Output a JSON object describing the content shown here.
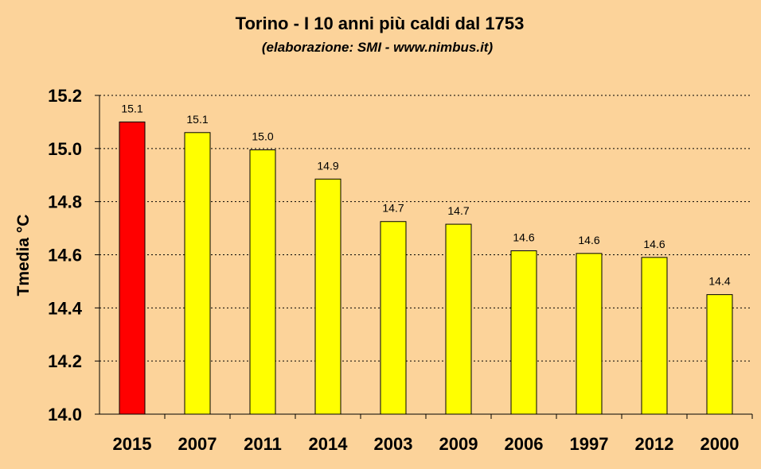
{
  "chart_data": {
    "type": "bar",
    "title": "Torino - I 10 anni più caldi dal 1753",
    "subtitle": "(elaborazione: SMI - www.nimbus.it)",
    "xlabel": "",
    "ylabel": "Tmedia °C",
    "ylim": [
      14.0,
      15.2
    ],
    "yticks": [
      "14.0",
      "14.2",
      "14.4",
      "14.6",
      "14.8",
      "15.0",
      "15.2"
    ],
    "ytick_values": [
      14.0,
      14.2,
      14.4,
      14.6,
      14.8,
      15.0,
      15.2
    ],
    "grid": true,
    "categories": [
      "2015",
      "2007",
      "2011",
      "2014",
      "2003",
      "2009",
      "2006",
      "1997",
      "2012",
      "2000"
    ],
    "values": [
      15.1,
      15.06,
      14.995,
      14.885,
      14.725,
      14.715,
      14.615,
      14.605,
      14.59,
      14.45
    ],
    "data_labels": [
      "15.1",
      "15.1",
      "15.0",
      "14.9",
      "14.7",
      "14.7",
      "14.6",
      "14.6",
      "14.6",
      "14.4"
    ],
    "bar_colors": [
      "#FF0000",
      "#FFFF00",
      "#FFFF00",
      "#FFFF00",
      "#FFFF00",
      "#FFFF00",
      "#FFFF00",
      "#FFFF00",
      "#FFFF00",
      "#FFFF00"
    ],
    "background_color": "#FCD39A"
  }
}
